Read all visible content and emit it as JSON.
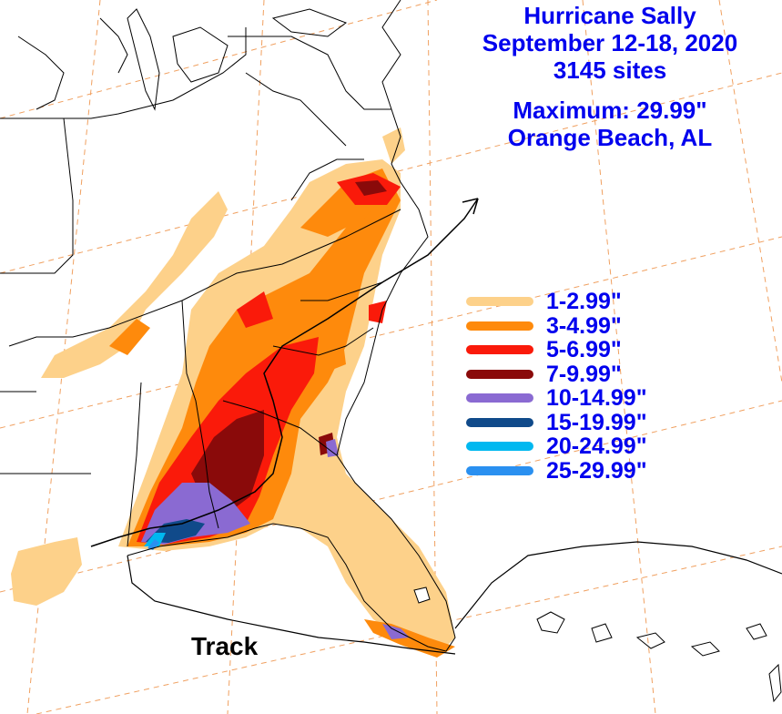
{
  "title": {
    "line1": "Hurricane Sally",
    "line2": "September 12-18, 2020",
    "line3": "3145 sites",
    "line4": "Maximum: 29.99\"",
    "line5": "Orange Beach, AL"
  },
  "legend": [
    {
      "label": "1-2.99\"",
      "color": "#fdd18a"
    },
    {
      "label": "3-4.99\"",
      "color": "#fe8a0c"
    },
    {
      "label": "5-6.99\"",
      "color": "#fa1a0a"
    },
    {
      "label": "7-9.99\"",
      "color": "#8a0a0a"
    },
    {
      "label": "10-14.99\"",
      "color": "#8a6ad2"
    },
    {
      "label": "15-19.99\"",
      "color": "#104a8a"
    },
    {
      "label": "20-24.99\"",
      "color": "#00b8f0"
    },
    {
      "label": "25-29.99\"",
      "color": "#2a90f0"
    }
  ],
  "track_label": "Track",
  "colors": {
    "title_text": "#0000ee",
    "graticule": "#f0a060",
    "boundary": "#000000",
    "track": "#000000"
  }
}
